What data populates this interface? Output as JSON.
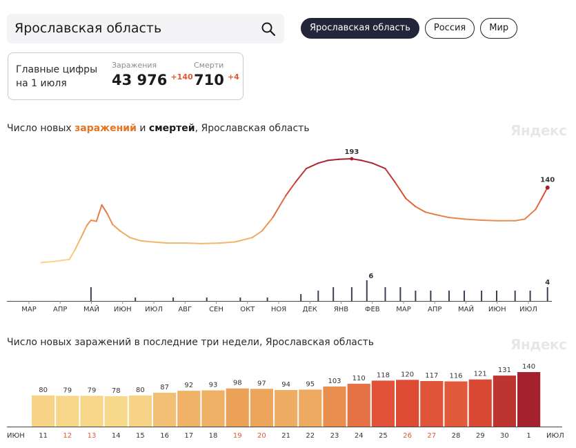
{
  "search": {
    "value": "Ярославская область"
  },
  "regions": [
    {
      "label": "Ярославская область",
      "active": true
    },
    {
      "label": "Россия",
      "active": false
    },
    {
      "label": "Мир",
      "active": false
    }
  ],
  "summary": {
    "title": "Главные цифры на 1 июля",
    "infections_label": "Заражения",
    "infections_value": "43 976",
    "infections_delta": "+140",
    "deaths_label": "Смерти",
    "deaths_value": "710",
    "deaths_delta": "+4"
  },
  "chart1": {
    "title_prefix": "Число новых ",
    "title_infections": "заражений",
    "title_and": " и ",
    "title_deaths": "смертей",
    "title_suffix": ", Ярославская область",
    "brand": "Яндекс"
  },
  "chart2": {
    "title": "Число новых заражений в последние три недели, Ярославская область",
    "brand": "Яндекс"
  },
  "colors": {
    "low": "#f7d98c",
    "mid": "#eba056",
    "high": "#df4c35",
    "top": "#a3222e",
    "weekend_tick": "#e0582d"
  },
  "chart_data": [
    {
      "type": "line",
      "title": "Число новых заражений и смертей, Ярославская область",
      "x_ticks": [
        "МАР",
        "АПР",
        "МАЙ",
        "ИЮН",
        "ИЮЛ",
        "АВГ",
        "СЕН",
        "ОКТ",
        "НОЯ",
        "ДЕК",
        "ЯНВ",
        "ФЕВ",
        "МАР",
        "АПР",
        "МАЙ",
        "ИЮН",
        "ИЮЛ"
      ],
      "infections": {
        "x": [
          "2020-03-20",
          "2020-04-01",
          "2020-04-15",
          "2020-04-20",
          "2020-04-25",
          "2020-05-01",
          "2020-05-05",
          "2020-05-10",
          "2020-05-15",
          "2020-05-20",
          "2020-05-25",
          "2020-06-01",
          "2020-06-10",
          "2020-06-20",
          "2020-07-01",
          "2020-07-15",
          "2020-08-01",
          "2020-08-15",
          "2020-09-01",
          "2020-09-15",
          "2020-10-01",
          "2020-10-10",
          "2020-10-20",
          "2020-11-01",
          "2020-11-10",
          "2020-11-20",
          "2020-12-01",
          "2020-12-10",
          "2020-12-20",
          "2021-01-01",
          "2021-01-10",
          "2021-01-20",
          "2021-02-01",
          "2021-02-10",
          "2021-02-20",
          "2021-03-01",
          "2021-03-10",
          "2021-03-20",
          "2021-04-01",
          "2021-04-15",
          "2021-05-01",
          "2021-05-15",
          "2021-06-01",
          "2021-06-10",
          "2021-06-20",
          "2021-06-25",
          "2021-07-01"
        ],
        "y": [
          2,
          4,
          8,
          25,
          45,
          70,
          80,
          78,
          108,
          92,
          72,
          60,
          48,
          42,
          40,
          38,
          38,
          37,
          38,
          40,
          48,
          60,
          85,
          125,
          150,
          175,
          185,
          190,
          192,
          193,
          190,
          185,
          175,
          150,
          120,
          105,
          95,
          90,
          85,
          82,
          80,
          79,
          79,
          82,
          100,
          118,
          140
        ],
        "peak_label": "193",
        "last_label": "140"
      },
      "deaths": {
        "x": [
          "2020-05-05",
          "2020-06-15",
          "2020-07-20",
          "2020-08-20",
          "2020-09-20",
          "2020-10-15",
          "2020-11-15",
          "2020-12-01",
          "2020-12-15",
          "2021-01-01",
          "2021-01-15",
          "2021-02-01",
          "2021-02-15",
          "2021-03-01",
          "2021-03-15",
          "2021-04-01",
          "2021-04-15",
          "2021-05-01",
          "2021-05-15",
          "2021-06-01",
          "2021-06-15",
          "2021-07-01"
        ],
        "y": [
          4,
          1,
          1,
          1,
          1,
          1,
          2,
          3,
          4,
          4,
          6,
          4,
          4,
          3,
          3,
          3,
          3,
          3,
          3,
          3,
          3,
          4
        ],
        "peak_label": "6",
        "last_label": "4"
      }
    },
    {
      "type": "bar",
      "title": "Число новых заражений в последние три недели, Ярославская область",
      "start_label": "ИЮН",
      "end_label": "ИЮЛ",
      "categories": [
        "11",
        "12",
        "13",
        "14",
        "15",
        "16",
        "17",
        "18",
        "19",
        "20",
        "21",
        "22",
        "23",
        "24",
        "25",
        "26",
        "27",
        "28",
        "29",
        "30",
        "1"
      ],
      "weekend": [
        "12",
        "13",
        "19",
        "20",
        "26",
        "27"
      ],
      "values": [
        80,
        79,
        79,
        78,
        80,
        87,
        92,
        93,
        98,
        97,
        94,
        95,
        103,
        110,
        118,
        120,
        117,
        116,
        121,
        131,
        140
      ],
      "ylim": [
        0,
        140
      ]
    }
  ]
}
